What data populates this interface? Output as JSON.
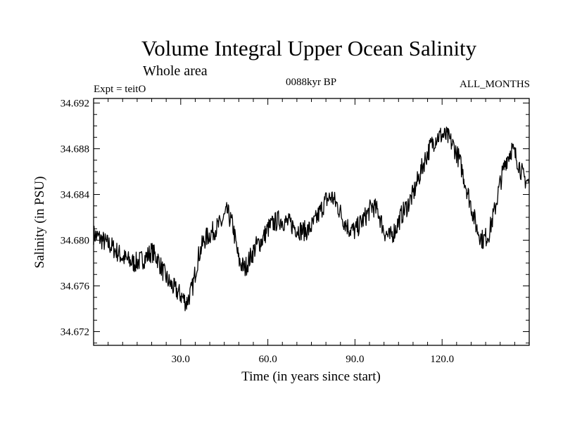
{
  "chart_data": {
    "type": "line",
    "title": "Volume Integral Upper Ocean Salinity",
    "subtitle": "Whole area",
    "expt": "Expt = teitO",
    "period": "0088kyr BP",
    "months": "ALL_MONTHS",
    "xlabel": "Time (in years since start)",
    "ylabel": "Salinity (in PSU)",
    "xlim": [
      0,
      150
    ],
    "ylim": [
      34.6708,
      34.6924
    ],
    "x_ticks": [
      30.0,
      60.0,
      90.0,
      120.0
    ],
    "x_tick_labels": [
      "30.0",
      "60.0",
      "90.0",
      "120.0"
    ],
    "y_ticks": [
      34.672,
      34.676,
      34.68,
      34.684,
      34.688,
      34.692
    ],
    "y_tick_labels": [
      "34.672",
      "34.676",
      "34.680",
      "34.684",
      "34.688",
      "34.692"
    ],
    "series": [
      {
        "name": "salinity",
        "x": [
          0,
          2,
          4,
          6,
          8,
          10,
          12,
          14,
          16,
          18,
          20,
          22,
          24,
          26,
          28,
          30,
          32,
          34,
          36,
          38,
          40,
          42,
          44,
          46,
          48,
          50,
          52,
          54,
          56,
          58,
          60,
          62,
          64,
          66,
          68,
          70,
          72,
          74,
          76,
          78,
          80,
          82,
          84,
          86,
          88,
          90,
          92,
          94,
          96,
          98,
          100,
          102,
          104,
          106,
          108,
          110,
          112,
          114,
          116,
          118,
          120,
          122,
          124,
          126,
          128,
          130,
          132,
          134,
          136,
          138,
          140,
          142,
          144,
          146,
          148,
          150
        ],
        "values": [
          34.6805,
          34.6802,
          34.6798,
          34.6795,
          34.679,
          34.6785,
          34.6782,
          34.678,
          34.6782,
          34.6785,
          34.679,
          34.6784,
          34.6772,
          34.6763,
          34.6757,
          34.6752,
          34.6745,
          34.6758,
          34.6785,
          34.68,
          34.6805,
          34.681,
          34.6815,
          34.6825,
          34.6812,
          34.6782,
          34.6775,
          34.6785,
          34.6795,
          34.68,
          34.681,
          34.6815,
          34.6818,
          34.6816,
          34.6814,
          34.681,
          34.6808,
          34.6809,
          34.6815,
          34.6825,
          34.6835,
          34.6838,
          34.683,
          34.6818,
          34.681,
          34.6808,
          34.6815,
          34.6822,
          34.683,
          34.6825,
          34.6808,
          34.6802,
          34.681,
          34.6822,
          34.683,
          34.684,
          34.6855,
          34.687,
          34.6882,
          34.689,
          34.6892,
          34.689,
          34.6882,
          34.687,
          34.685,
          34.683,
          34.681,
          34.68,
          34.6805,
          34.6825,
          34.685,
          34.687,
          34.688,
          34.687,
          34.6855,
          34.685
        ],
        "noise_amplitude": 0.0009
      }
    ]
  }
}
